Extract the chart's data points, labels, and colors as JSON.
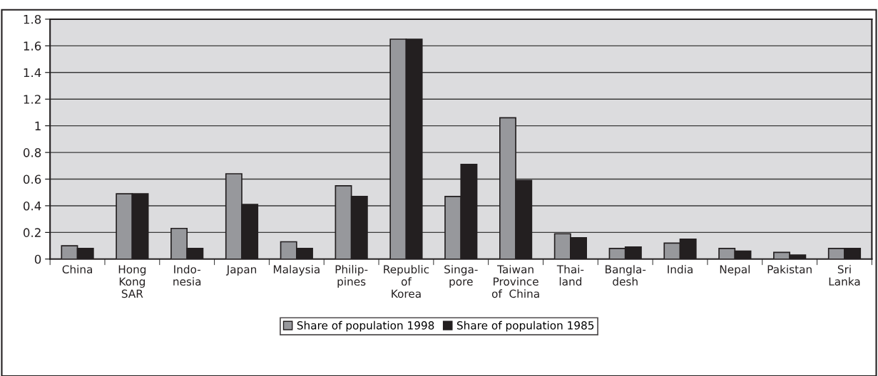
{
  "chart_data": {
    "type": "bar",
    "categories": [
      "China",
      "Hong\nKong\nSAR",
      "Indo-\nnesia",
      "Japan",
      "Malaysia",
      "Philip-\npines",
      "Republic\nof\nKorea",
      "Singa-\npore",
      "Taiwan\nProvince\nof  China",
      "Thai-\nland",
      "Bangla-\ndesh",
      "India",
      "Nepal",
      "Pakistan",
      "Sri\nLanka"
    ],
    "series": [
      {
        "name": "Share of population 1998",
        "color": "#97989c",
        "values": [
          0.1,
          0.49,
          0.23,
          0.64,
          0.13,
          0.55,
          1.65,
          0.47,
          1.06,
          0.19,
          0.08,
          0.12,
          0.08,
          0.05,
          0.08
        ]
      },
      {
        "name": "Share of population 1985",
        "color": "#231f20",
        "values": [
          0.08,
          0.49,
          0.08,
          0.41,
          0.08,
          0.47,
          1.65,
          0.71,
          0.59,
          0.16,
          0.09,
          0.15,
          0.06,
          0.03,
          0.08
        ]
      }
    ],
    "ylim": [
      0,
      1.8
    ],
    "yticks": [
      0,
      0.2,
      0.4,
      0.6,
      0.8,
      1,
      1.2,
      1.4,
      1.6,
      1.8
    ],
    "grid": "y",
    "legend": "bottom"
  }
}
